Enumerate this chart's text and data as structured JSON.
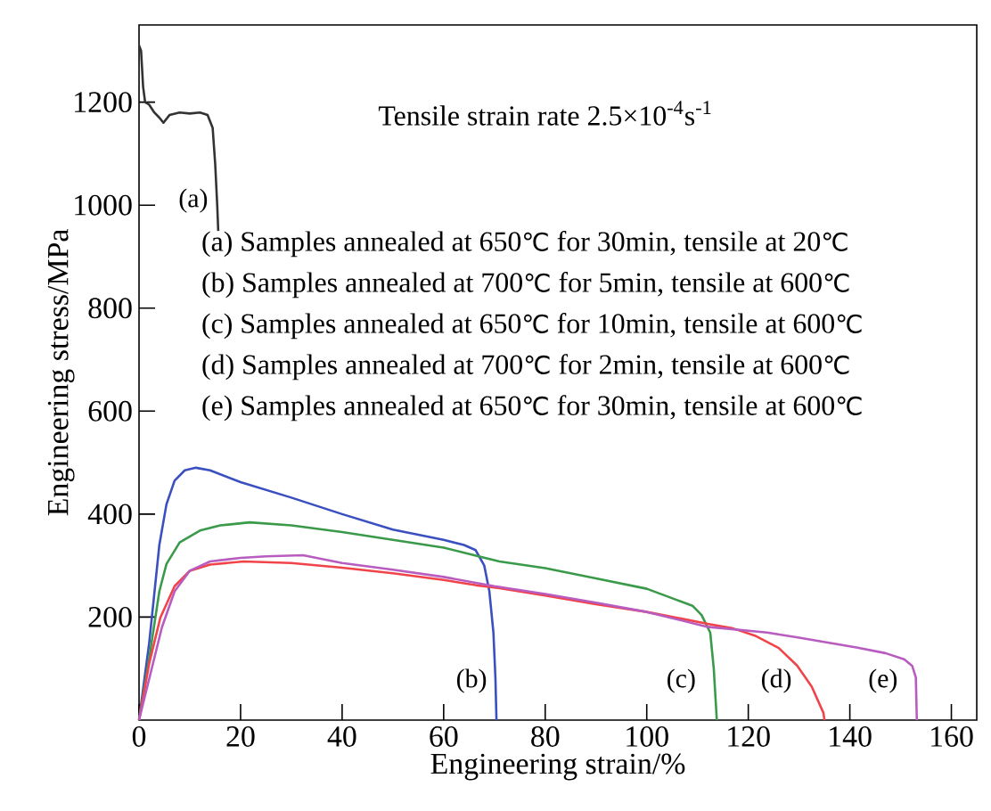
{
  "chart_data": {
    "type": "line",
    "xlabel": "Engineering strain/%",
    "ylabel": "Engineering stress/MPa",
    "xlim": [
      0,
      165
    ],
    "ylim": [
      0,
      1350
    ],
    "xticks": [
      0,
      20,
      40,
      60,
      80,
      100,
      120,
      140,
      160
    ],
    "yticks": [
      200,
      400,
      600,
      800,
      1000,
      1200
    ],
    "grid": false,
    "legend": false,
    "marker": "none",
    "line_style": "solid",
    "series": [
      {
        "name": "(a)",
        "color": "#333333",
        "x": [
          0,
          0.4,
          0.8,
          1.2,
          2,
          3,
          4,
          4.8,
          6,
          8,
          10,
          12,
          13.5,
          14.5,
          15,
          15.4,
          15.6
        ],
        "values": [
          1310,
          1300,
          1230,
          1200,
          1195,
          1180,
          1170,
          1160,
          1175,
          1180,
          1178,
          1180,
          1175,
          1150,
          1080,
          1000,
          950
        ]
      },
      {
        "name": "(b)",
        "color": "#3a4fc0",
        "x": [
          0,
          2,
          4,
          5.4,
          7,
          9,
          11.2,
          14,
          20,
          30,
          40,
          50,
          60,
          64,
          66.3,
          68,
          69,
          69.8,
          70.2,
          70.4
        ],
        "values": [
          0,
          150,
          340,
          419,
          465,
          485,
          490,
          485,
          462,
          432,
          400,
          370,
          350,
          340,
          330,
          300,
          250,
          170,
          80,
          0
        ]
      },
      {
        "name": "(c)",
        "color": "#3a9a4a",
        "x": [
          0,
          2,
          4,
          5.4,
          8,
          12,
          16,
          21.8,
          30,
          40,
          50,
          60,
          66,
          71,
          80,
          90,
          100,
          106,
          109,
          110.8,
          112.5,
          113.2,
          113.8
        ],
        "values": [
          0,
          120,
          250,
          303,
          345,
          368,
          378,
          384,
          378,
          365,
          350,
          335,
          320,
          308,
          295,
          275,
          255,
          233,
          222,
          204,
          170,
          100,
          0
        ]
      },
      {
        "name": "(d)",
        "color": "#f0444a",
        "x": [
          0,
          2,
          4.2,
          7,
          10,
          14,
          20.6,
          30,
          40,
          50,
          60,
          66.3,
          71,
          80,
          90,
          100,
          112,
          117,
          121.3,
          126,
          129.6,
          132.5,
          134.8,
          135
        ],
        "values": [
          0,
          110,
          199,
          260,
          290,
          302,
          308,
          305,
          296,
          285,
          272,
          262,
          256,
          242,
          225,
          210,
          187,
          178,
          164,
          140,
          106,
          65,
          14,
          0
        ]
      },
      {
        "name": "(e)",
        "color": "#b85cc0",
        "x": [
          0,
          2,
          4.5,
          7,
          10,
          14,
          20,
          25,
          32.3,
          40,
          50,
          60,
          70,
          80,
          90,
          100,
          112,
          123.7,
          130,
          141.3,
          147,
          150.7,
          152.3,
          153,
          153.2
        ],
        "values": [
          0,
          80,
          180,
          250,
          290,
          308,
          315,
          318,
          320,
          305,
          292,
          278,
          260,
          245,
          228,
          210,
          181,
          170,
          160,
          141,
          130,
          118,
          105,
          83,
          0
        ]
      }
    ],
    "annotations": [
      "Tensile strain rate 2.5×10$^{-4}$s$^{-1}$",
      "(a) Samples annealed at 650℃ for 30min, tensile at 20℃",
      "(b) Samples annealed at 700℃ for 5min, tensile at 600℃",
      "(c) Samples annealed at 650℃ for 10min, tensile at 600℃",
      "(d) Samples annealed at 700℃ for 2min, tensile at 600℃",
      "(e) Samples annealed at 650℃ for 30min, tensile at 600℃"
    ]
  }
}
